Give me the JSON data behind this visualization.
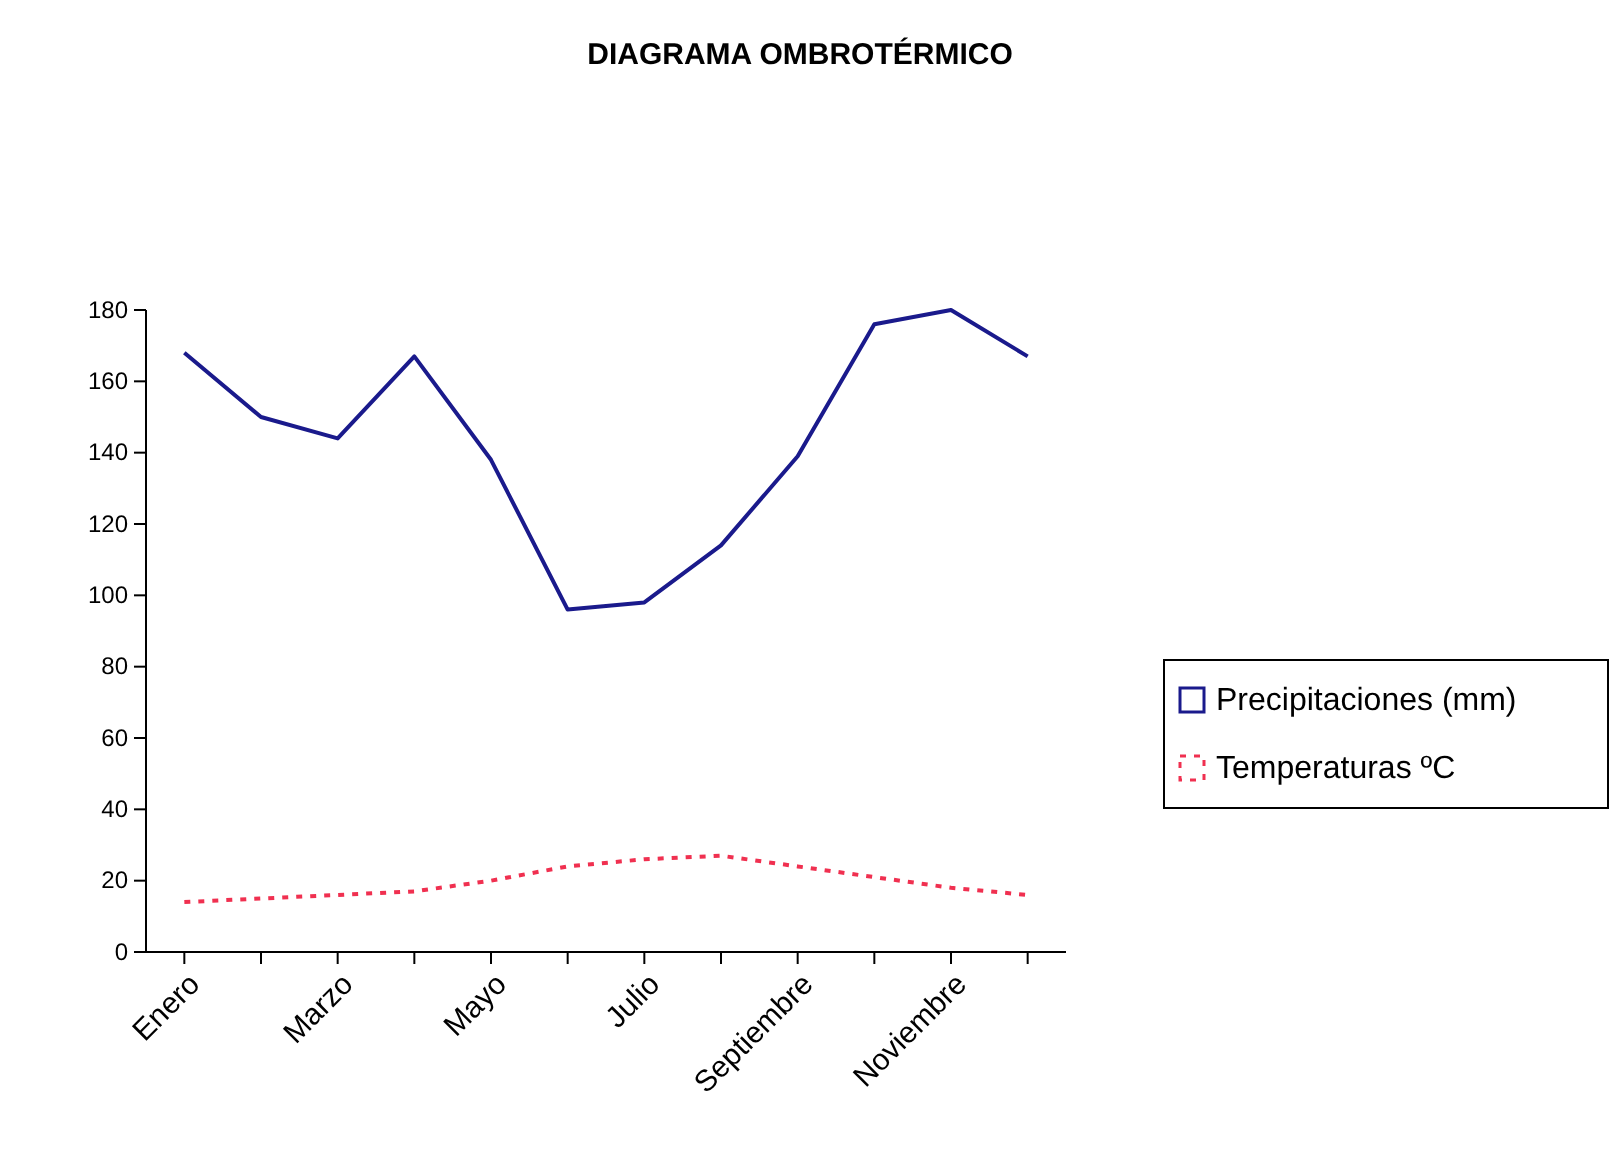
{
  "chart_data": {
    "type": "line",
    "title": "DIAGRAMA OMBROTÉRMICO",
    "categories": [
      "Enero",
      null,
      "Marzo",
      null,
      "Mayo",
      null,
      "Julio",
      null,
      "Septiembre",
      null,
      "Noviembre",
      null
    ],
    "series": [
      {
        "name": "Precipitaciones (mm)",
        "color": "#1a1a8c",
        "line_style": "solid",
        "values": [
          168,
          150,
          144,
          167,
          138,
          96,
          98,
          114,
          139,
          176,
          180,
          167
        ]
      },
      {
        "name": "Temperaturas ºC",
        "color": "#f03050",
        "line_style": "dotted",
        "values": [
          14,
          15,
          16,
          17,
          20,
          24,
          26,
          27,
          24,
          21,
          18,
          16
        ]
      }
    ],
    "ylim": [
      0,
      180
    ],
    "yticks": [
      0,
      20,
      40,
      60,
      80,
      100,
      120,
      140,
      160,
      180
    ],
    "grid": false,
    "legend": "right",
    "marker": "none"
  }
}
